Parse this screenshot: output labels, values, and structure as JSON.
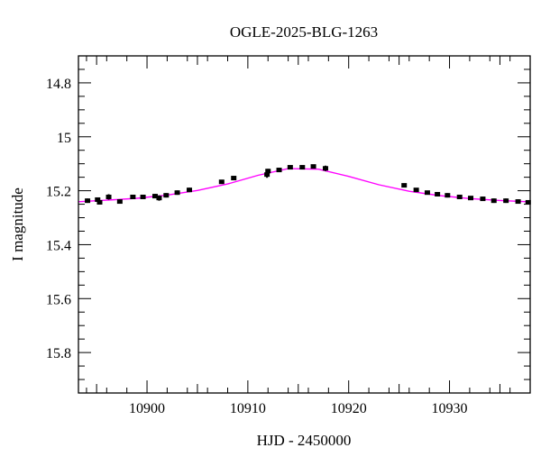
{
  "chart_data": {
    "type": "scatter",
    "title": "OGLE-2025-BLG-1263",
    "xlabel": "HJD - 2450000",
    "ylabel": "I magnitude",
    "xlim": [
      10893.2,
      10938.0
    ],
    "ylim": [
      14.7,
      15.95
    ],
    "y_inverted": true,
    "grid": false,
    "x_ticks": [
      10900,
      10910,
      10920,
      10930
    ],
    "y_ticks": [
      14.8,
      15,
      15.2,
      15.4,
      15.6,
      15.8
    ],
    "y_tick_labels": [
      "14.8",
      "15",
      "15.2",
      "15.4",
      "15.6",
      "15.8"
    ],
    "series": [
      {
        "kind": "points-with-errorbars",
        "color": "#000000",
        "x": [
          10894.1,
          10895.1,
          10895.3,
          10896.2,
          10897.3,
          10898.6,
          10899.6,
          10900.8,
          10901.2,
          10901.9,
          10903.0,
          10904.2,
          10907.4,
          10908.6,
          10911.9,
          10912.0,
          10913.1,
          10914.2,
          10915.4,
          10916.5,
          10917.7,
          10925.5,
          10926.7,
          10927.8,
          10928.8,
          10929.8,
          10931.0,
          10932.1,
          10933.3,
          10934.4,
          10935.6,
          10936.8,
          10937.8
        ],
        "y": [
          15.237,
          15.233,
          15.243,
          15.223,
          15.24,
          15.223,
          15.223,
          15.22,
          15.227,
          15.217,
          15.207,
          15.197,
          15.167,
          15.153,
          15.14,
          15.127,
          15.123,
          15.113,
          15.113,
          15.11,
          15.117,
          15.18,
          15.197,
          15.207,
          15.213,
          15.217,
          15.223,
          15.227,
          15.23,
          15.237,
          15.237,
          15.24,
          15.243
        ],
        "err": [
          0.008,
          0.008,
          0.008,
          0.01,
          0.008,
          0.006,
          0.006,
          0.008,
          0.01,
          0.008,
          0.008,
          0.008,
          0.006,
          0.006,
          0.012,
          0.008,
          0.008,
          0.006,
          0.006,
          0.006,
          0.01,
          0.006,
          0.006,
          0.006,
          0.008,
          0.008,
          0.008,
          0.006,
          0.008,
          0.008,
          0.008,
          0.008,
          0.008
        ]
      },
      {
        "kind": "model-line",
        "color": "#ff00ff",
        "x": [
          10893,
          10896,
          10899,
          10902,
          10905,
          10908,
          10911,
          10914,
          10917,
          10920,
          10923,
          10926,
          10929,
          10932,
          10935,
          10938
        ],
        "y": [
          15.241,
          15.235,
          15.228,
          15.216,
          15.199,
          15.175,
          15.143,
          15.118,
          15.12,
          15.147,
          15.178,
          15.202,
          15.218,
          15.229,
          15.236,
          15.241
        ]
      }
    ]
  }
}
